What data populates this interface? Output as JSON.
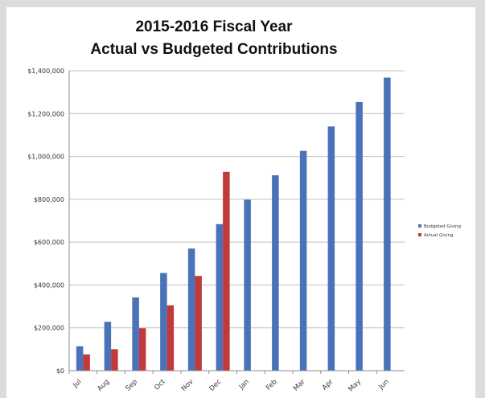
{
  "chart_data": {
    "type": "bar",
    "title_lines": [
      "2015-2016 Fiscal Year",
      "Actual vs Budgeted Contributions"
    ],
    "categories": [
      "Jul",
      "Aug",
      "Sep",
      "Oct",
      "Nov",
      "Dec",
      "Jan",
      "Feb",
      "Mar",
      "Apr",
      "May",
      "Jun"
    ],
    "series": [
      {
        "name": "Budgeted Giving",
        "color": "#4a72b8",
        "values": [
          114000,
          228000,
          342000,
          456000,
          570000,
          684000,
          798000,
          912000,
          1026000,
          1140000,
          1254000,
          1368000
        ]
      },
      {
        "name": "Actual Giving",
        "color": "#c0393b",
        "values": [
          76000,
          100000,
          198000,
          305000,
          442000,
          928000,
          null,
          null,
          null,
          null,
          null,
          null
        ]
      }
    ],
    "ylim": [
      0,
      1400000
    ],
    "y_ticks": [
      0,
      200000,
      400000,
      600000,
      800000,
      1000000,
      1200000,
      1400000
    ],
    "y_tick_labels": [
      "$0",
      "$200,000",
      "$400,000",
      "$600,000",
      "$800,000",
      "$1,000,000",
      "$1,200,000",
      "$1,400,000"
    ],
    "grid": true,
    "legend_position": "right"
  }
}
